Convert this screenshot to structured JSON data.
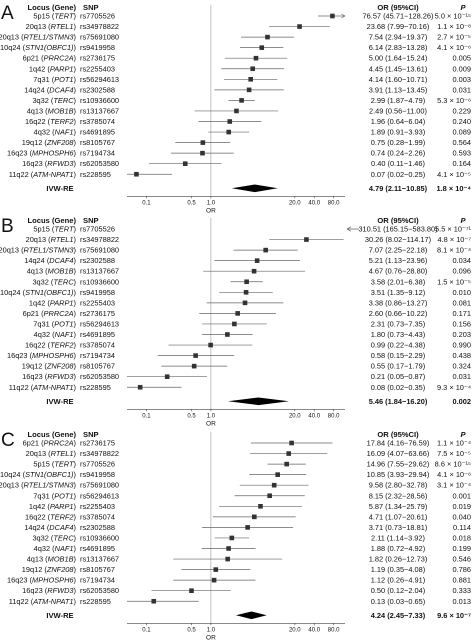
{
  "chart_data": [
    {
      "type": "forest",
      "panel_label": "A",
      "headers": {
        "locus": "Locus (Gene)",
        "snp": "SNP",
        "or": "OR (95%CI)",
        "p": "P"
      },
      "xlabel": "OR",
      "x_scale": "log",
      "xlim": [
        0.05,
        120
      ],
      "x_ticks": [
        "0.1",
        "0.5",
        "1.0",
        "20.0",
        "40.0",
        "80.0"
      ],
      "x_tick_values": [
        0.1,
        0.5,
        1.0,
        20.0,
        40.0,
        80.0
      ],
      "rows": [
        {
          "locus": "5p15",
          "gene": "TERT",
          "snp": "rs7705526",
          "or": 76.57,
          "lo": 45.71,
          "hi": 128.26,
          "or_text": "76.57 (45.71−128.26)",
          "p_text": "5.0 × 10⁻¹⁵"
        },
        {
          "locus": "20q13",
          "gene": "RTEL1",
          "snp": "rs34978822",
          "or": 23.68,
          "lo": 7.99,
          "hi": 70.16,
          "or_text": "23.68 (7.99−70.16)",
          "p_text": "1.1 × 10⁻⁸"
        },
        {
          "locus": "20q13",
          "gene": "RTEL1/STMN3",
          "snp": "rs75691080",
          "or": 7.54,
          "lo": 2.94,
          "hi": 19.37,
          "or_text": "7.54 (2.94−19.37)",
          "p_text": "2.7 × 10⁻⁵"
        },
        {
          "locus": "10q24",
          "gene": "STN1(OBFC1)",
          "snp": "rs9419958",
          "or": 6.14,
          "lo": 2.83,
          "hi": 13.28,
          "or_text": "6.14 (2.83−13.28)",
          "p_text": "4.1 × 10⁻⁶"
        },
        {
          "locus": "6p21",
          "gene": "PRRC2A",
          "snp": "rs2736175",
          "or": 5.0,
          "lo": 1.64,
          "hi": 15.24,
          "or_text": "5.00 (1.64−15.24)",
          "p_text": "0.005"
        },
        {
          "locus": "1q42",
          "gene": "PARP1",
          "snp": "rs2255403",
          "or": 4.45,
          "lo": 1.45,
          "hi": 13.61,
          "or_text": "4.45 (1.45−13.61)",
          "p_text": "0.009"
        },
        {
          "locus": "7q31",
          "gene": "POT1",
          "snp": "rs56294613",
          "or": 4.14,
          "lo": 1.6,
          "hi": 10.71,
          "or_text": "4.14 (1.60−10.71)",
          "p_text": "0.003"
        },
        {
          "locus": "14q24",
          "gene": "DCAF4",
          "snp": "rs2302588",
          "or": 3.91,
          "lo": 1.13,
          "hi": 13.45,
          "or_text": "3.91 (1.13−13.45)",
          "p_text": "0.031"
        },
        {
          "locus": "3q32",
          "gene": "TERC",
          "snp": "rs10936600",
          "or": 2.99,
          "lo": 1.87,
          "hi": 4.79,
          "or_text": "2.99 (1.87−4.79)",
          "p_text": "5.3 × 10⁻⁶"
        },
        {
          "locus": "4q13",
          "gene": "MOB1B",
          "snp": "rs13137667",
          "or": 2.49,
          "lo": 0.56,
          "hi": 11.0,
          "or_text": "2.49 (0.56−11.00)",
          "p_text": "0.229"
        },
        {
          "locus": "16q22",
          "gene": "TERF2",
          "snp": "rs3785074",
          "or": 1.96,
          "lo": 0.64,
          "hi": 6.04,
          "or_text": "1.96 (0.64−6.04)",
          "p_text": "0.240"
        },
        {
          "locus": "4q32",
          "gene": "NAF1",
          "snp": "rs4691895",
          "or": 1.89,
          "lo": 0.91,
          "hi": 3.93,
          "or_text": "1.89 (0.91−3.93)",
          "p_text": "0.089"
        },
        {
          "locus": "19q12",
          "gene": "ZNF208",
          "snp": "rs8105767",
          "or": 0.75,
          "lo": 0.28,
          "hi": 1.99,
          "or_text": "0.75 (0.28−1.99)",
          "p_text": "0.564"
        },
        {
          "locus": "16q23",
          "gene": "MPHOSPH6",
          "snp": "rs7194734",
          "or": 0.74,
          "lo": 0.24,
          "hi": 2.26,
          "or_text": "0.74 (0.24−2.26)",
          "p_text": "0.593"
        },
        {
          "locus": "16q23",
          "gene": "RFWD3",
          "snp": "rs62053580",
          "or": 0.4,
          "lo": 0.11,
          "hi": 1.46,
          "or_text": "0.40 (0.11−1.46)",
          "p_text": "0.164"
        },
        {
          "locus": "11q22",
          "gene": "ATM-NPAT1",
          "snp": "rs228595",
          "or": 0.07,
          "lo": 0.02,
          "hi": 0.25,
          "or_text": "0.07 (0.02−0.25)",
          "p_text": "4.1 × 10⁻⁵"
        }
      ],
      "summary": {
        "label": "IVW-RE",
        "or": 4.79,
        "lo": 2.11,
        "hi": 10.85,
        "or_text": "4.79 (2.11−10.85)",
        "p_text": "1.8 × 10⁻⁴"
      }
    },
    {
      "type": "forest",
      "panel_label": "B",
      "headers": {
        "locus": "Locus (Gene)",
        "snp": "SNP",
        "or": "OR (95%CI)",
        "p": "P"
      },
      "xlabel": "OR",
      "x_scale": "log",
      "xlim": [
        0.05,
        120
      ],
      "x_ticks": [
        "0.1",
        "0.5",
        "1.0",
        "20.0",
        "40.0",
        "80.0"
      ],
      "x_tick_values": [
        0.1,
        0.5,
        1.0,
        20.0,
        40.0,
        80.0
      ],
      "rows": [
        {
          "locus": "5p15",
          "gene": "TERT",
          "snp": "rs7705526",
          "or": 310.51,
          "lo": 165.15,
          "hi": 583.8,
          "offscale": true,
          "or_text": "310.51 (165.15−583.80)",
          "p_text": "5.5 × 10⁻⁷¹"
        },
        {
          "locus": "20q13",
          "gene": "RTEL1",
          "snp": "rs34978822",
          "or": 30.26,
          "lo": 8.02,
          "hi": 114.17,
          "or_text": "30.26 (8.02−114.17)",
          "p_text": "4.8 × 10⁻⁷"
        },
        {
          "locus": "20q13",
          "gene": "RTEL1/STMN3",
          "snp": "rs75691080",
          "or": 7.07,
          "lo": 2.25,
          "hi": 22.18,
          "or_text": "7.07 (2.25−22.18)",
          "p_text": "8.1 × 10⁻⁴"
        },
        {
          "locus": "14q24",
          "gene": "DCAF4",
          "snp": "rs2302588",
          "or": 5.21,
          "lo": 1.13,
          "hi": 23.96,
          "or_text": "5.21 (1.13−23.96)",
          "p_text": "0.034"
        },
        {
          "locus": "4q13",
          "gene": "MOB1B",
          "snp": "rs13137667",
          "or": 4.67,
          "lo": 0.76,
          "hi": 28.8,
          "or_text": "4.67 (0.76−28.80)",
          "p_text": "0.096"
        },
        {
          "locus": "3q32",
          "gene": "TERC",
          "snp": "rs10936600",
          "or": 3.58,
          "lo": 2.01,
          "hi": 6.38,
          "or_text": "3.58 (2.01−6.38)",
          "p_text": "1.5 × 10⁻⁵"
        },
        {
          "locus": "10q24",
          "gene": "STN1(OBFC1)",
          "snp": "rs9419958",
          "or": 3.51,
          "lo": 1.35,
          "hi": 9.12,
          "or_text": "3.51 (1.35−9.12)",
          "p_text": "0.010"
        },
        {
          "locus": "1q42",
          "gene": "PARP1",
          "snp": "rs2255403",
          "or": 3.38,
          "lo": 0.86,
          "hi": 13.27,
          "or_text": "3.38 (0.86−13.27)",
          "p_text": "0.081"
        },
        {
          "locus": "6p21",
          "gene": "PRRC2A",
          "snp": "rs2736175",
          "or": 2.6,
          "lo": 0.66,
          "hi": 10.22,
          "or_text": "2.60 (0.66−10.22)",
          "p_text": "0.171"
        },
        {
          "locus": "7q31",
          "gene": "POT1",
          "snp": "rs56294613",
          "or": 2.31,
          "lo": 0.73,
          "hi": 7.35,
          "or_text": "2.31 (0.73−7.35)",
          "p_text": "0.156"
        },
        {
          "locus": "4q32",
          "gene": "NAF1",
          "snp": "rs4691895",
          "or": 1.8,
          "lo": 0.73,
          "hi": 4.43,
          "or_text": "1.80 (0.73−4.43)",
          "p_text": "0.203"
        },
        {
          "locus": "16q22",
          "gene": "TERF2",
          "snp": "rs3785074",
          "or": 0.99,
          "lo": 0.22,
          "hi": 4.38,
          "or_text": "0.99 (0.22−4.38)",
          "p_text": "0.990"
        },
        {
          "locus": "16q23",
          "gene": "MPHOSPH6",
          "snp": "rs7194734",
          "or": 0.58,
          "lo": 0.15,
          "hi": 2.29,
          "or_text": "0.58 (0.15−2.29)",
          "p_text": "0.438"
        },
        {
          "locus": "19q12",
          "gene": "ZNF208",
          "snp": "rs8105767",
          "or": 0.55,
          "lo": 0.17,
          "hi": 1.79,
          "or_text": "0.55 (0.17−1.79)",
          "p_text": "0.324"
        },
        {
          "locus": "16q23",
          "gene": "RFWD3",
          "snp": "rs62053580",
          "or": 0.21,
          "lo": 0.05,
          "hi": 0.87,
          "or_text": "0.21 (0.05−0.87)",
          "p_text": "0.031"
        },
        {
          "locus": "11q22",
          "gene": "ATM-NPAT1",
          "snp": "rs228595",
          "or": 0.08,
          "lo": 0.02,
          "hi": 0.35,
          "or_text": "0.08 (0.02−0.35)",
          "p_text": "9.3 × 10⁻⁴"
        }
      ],
      "summary": {
        "label": "IVW-RE",
        "or": 5.46,
        "lo": 1.84,
        "hi": 16.2,
        "or_text": "5.46 (1.84−16.20)",
        "p_text": "0.002"
      }
    },
    {
      "type": "forest",
      "panel_label": "C",
      "headers": {
        "locus": "Locus (Gene)",
        "snp": "SNP",
        "or": "OR (95%CI)",
        "p": "P"
      },
      "xlabel": "OR",
      "x_scale": "log",
      "xlim": [
        0.05,
        120
      ],
      "x_ticks": [
        "0.1",
        "0.5",
        "1.0",
        "20.0",
        "40.0",
        "80.0"
      ],
      "x_tick_values": [
        0.1,
        0.5,
        1.0,
        20.0,
        40.0,
        80.0
      ],
      "rows": [
        {
          "locus": "6p21",
          "gene": "PRRC2A",
          "snp": "rs2736175",
          "or": 17.84,
          "lo": 4.16,
          "hi": 76.59,
          "or_text": "17.84 (4.16−76.59)",
          "p_text": "1.1 × 10⁻⁴"
        },
        {
          "locus": "20q13",
          "gene": "RTEL1",
          "snp": "rs34978822",
          "or": 16.09,
          "lo": 4.07,
          "hi": 63.66,
          "or_text": "16.09 (4.07−63.66)",
          "p_text": "7.5 × 10⁻⁵"
        },
        {
          "locus": "5p15",
          "gene": "TERT",
          "snp": "rs7705526",
          "or": 14.96,
          "lo": 7.55,
          "hi": 29.62,
          "or_text": "14.96 (7.55−29.62)",
          "p_text": "8.6 × 10⁻¹⁵"
        },
        {
          "locus": "10q24",
          "gene": "STN1(OBFC1)",
          "snp": "rs9419958",
          "or": 10.85,
          "lo": 3.93,
          "hi": 29.94,
          "or_text": "10.85 (3.93−29.94)",
          "p_text": "4.1 × 10⁻⁶"
        },
        {
          "locus": "20q13",
          "gene": "RTEL1/STMN3",
          "snp": "rs75691080",
          "or": 9.58,
          "lo": 2.8,
          "hi": 32.78,
          "or_text": "9.58 (2.80−32.78)",
          "p_text": "3.1 × 10⁻⁴"
        },
        {
          "locus": "7q31",
          "gene": "POT1",
          "snp": "rs56294613",
          "or": 8.15,
          "lo": 2.32,
          "hi": 28.56,
          "or_text": "8.15 (2.32−28.56)",
          "p_text": "0.001"
        },
        {
          "locus": "1q42",
          "gene": "PARP1",
          "snp": "rs2255403",
          "or": 5.87,
          "lo": 1.34,
          "hi": 25.79,
          "or_text": "5.87 (1.34−25.79)",
          "p_text": "0.019"
        },
        {
          "locus": "16q22",
          "gene": "TERF2",
          "snp": "rs3785074",
          "or": 4.71,
          "lo": 1.07,
          "hi": 20.61,
          "or_text": "4.71 (1.07−20.61)",
          "p_text": "0.040"
        },
        {
          "locus": "14q24",
          "gene": "DCAF4",
          "snp": "rs2302588",
          "or": 3.71,
          "lo": 0.73,
          "hi": 18.81,
          "or_text": "3.71 (0.73−18.81)",
          "p_text": "0.114"
        },
        {
          "locus": "3q32",
          "gene": "TERC",
          "snp": "rs10936600",
          "or": 2.11,
          "lo": 1.14,
          "hi": 3.92,
          "or_text": "2.11 (1.14−3.92)",
          "p_text": "0.018"
        },
        {
          "locus": "4q32",
          "gene": "NAF1",
          "snp": "rs4691895",
          "or": 1.88,
          "lo": 0.72,
          "hi": 4.92,
          "or_text": "1.88 (0.72−4.92)",
          "p_text": "0.199"
        },
        {
          "locus": "4q13",
          "gene": "MOB1B",
          "snp": "rs13137667",
          "or": 1.82,
          "lo": 0.26,
          "hi": 12.73,
          "or_text": "1.82 (0.26−12.73)",
          "p_text": "0.546"
        },
        {
          "locus": "19q12",
          "gene": "ZNF208",
          "snp": "rs8105767",
          "or": 1.19,
          "lo": 0.35,
          "hi": 4.08,
          "or_text": "1.19 (0.35−4.08)",
          "p_text": "0.786"
        },
        {
          "locus": "16q23",
          "gene": "MPHOSPH6",
          "snp": "rs7194734",
          "or": 1.12,
          "lo": 0.26,
          "hi": 4.91,
          "or_text": "1.12 (0.26−4.91)",
          "p_text": "0.881"
        },
        {
          "locus": "16q23",
          "gene": "RFWD3",
          "snp": "rs62053580",
          "or": 0.5,
          "lo": 0.12,
          "hi": 2.04,
          "or_text": "0.50 (0.12−2.04)",
          "p_text": "0.333"
        },
        {
          "locus": "11q22",
          "gene": "ATM-NPAT1",
          "snp": "rs228595",
          "or": 0.13,
          "lo": 0.03,
          "hi": 0.65,
          "or_text": "0.13 (0.03−0.65)",
          "p_text": "0.013"
        }
      ],
      "summary": {
        "label": "IVW-RE",
        "or": 4.24,
        "lo": 2.45,
        "hi": 7.33,
        "or_text": "4.24 (2.45−7.33)",
        "p_text": "9.6 × 10⁻⁷"
      }
    }
  ]
}
